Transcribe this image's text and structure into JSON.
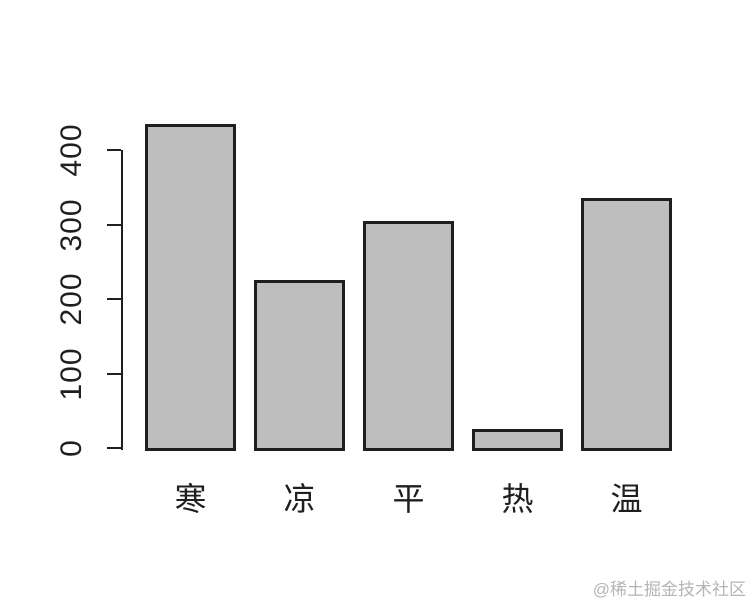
{
  "chart_data": {
    "type": "bar",
    "title": "",
    "xlabel": "",
    "ylabel": "",
    "categories": [
      "寒",
      "凉",
      "平",
      "热",
      "温"
    ],
    "values": [
      435,
      225,
      305,
      25,
      335
    ],
    "yticks": [
      0,
      100,
      200,
      300,
      400
    ],
    "ylim": [
      0,
      440
    ],
    "grid": false,
    "legend": "none",
    "bar_fill": "#bebebe",
    "bar_border": "#1f1f1f",
    "axis_color": "#1f1f1f",
    "tick_label_color": "#1f1f1f"
  },
  "watermark": {
    "text": "@稀土掘金技术社区",
    "color": "#b5b5b5"
  }
}
